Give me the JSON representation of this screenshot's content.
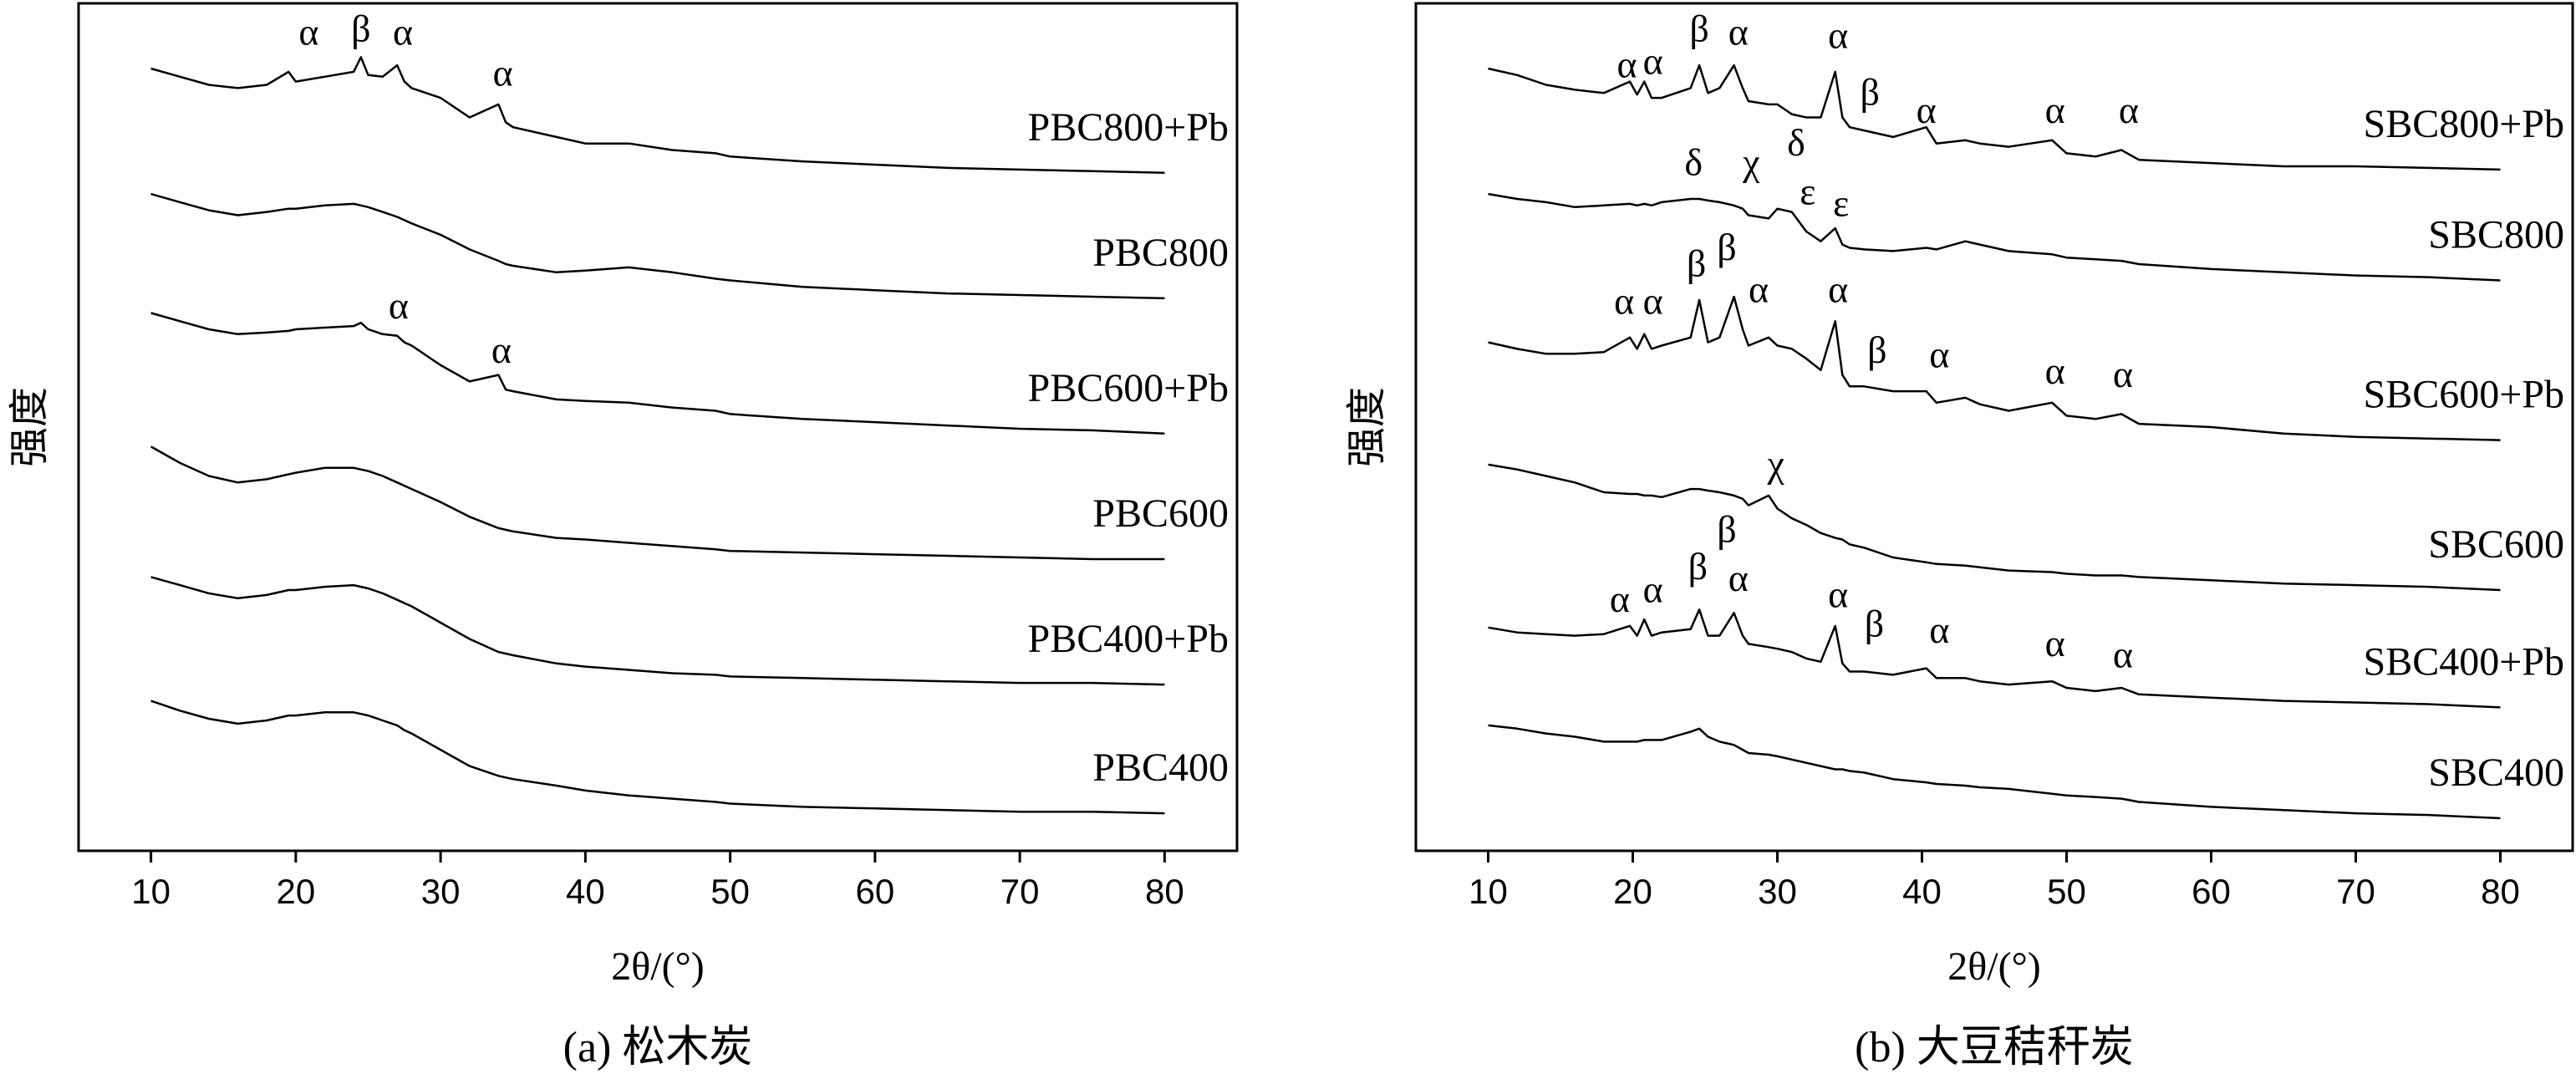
{
  "chart_data": [
    {
      "type": "line",
      "caption": "(a) 松木炭",
      "xlabel": "2θ/(°)",
      "ylabel": "强度",
      "xlim": [
        5,
        85
      ],
      "xticks": [
        10,
        20,
        30,
        40,
        50,
        60,
        70,
        80
      ],
      "ylim": [
        0,
        520
      ],
      "x": [
        10,
        12,
        14,
        16,
        18,
        19.5,
        20,
        22,
        24,
        24.5,
        25,
        26,
        27,
        27.5,
        28,
        30,
        32,
        34,
        34.5,
        35,
        38,
        40,
        43,
        46,
        49,
        50,
        55,
        60,
        65,
        70,
        75,
        80
      ],
      "series": [
        {
          "name": "PBC800+Pb",
          "color": "#000000",
          "values": [
            480,
            475,
            470,
            468,
            470,
            478,
            472,
            475,
            478,
            487,
            476,
            475,
            482,
            472,
            468,
            462,
            450,
            458,
            447,
            444,
            438,
            434,
            434,
            430,
            428,
            426,
            423,
            421,
            419,
            418,
            417,
            416
          ]
        },
        {
          "name": "PBC800",
          "color": "#000000",
          "values": [
            403,
            398,
            393,
            390,
            392,
            394,
            394,
            396,
            397,
            396,
            395,
            392,
            389,
            387,
            385,
            378,
            369,
            362,
            360,
            359,
            355,
            356,
            358,
            355,
            351,
            350,
            346,
            344,
            342,
            341,
            340,
            339
          ]
        },
        {
          "name": "PBC600+Pb",
          "color": "#000000",
          "values": [
            330,
            325,
            320,
            317,
            318,
            319,
            320,
            321,
            322,
            324,
            320,
            317,
            316,
            312,
            310,
            298,
            288,
            292,
            283,
            282,
            277,
            276,
            275,
            272,
            270,
            268,
            265,
            263,
            261,
            259,
            258,
            256
          ]
        },
        {
          "name": "PBC600",
          "color": "#000000",
          "values": [
            248,
            238,
            230,
            226,
            228,
            231,
            232,
            235,
            235,
            234,
            233,
            230,
            226,
            224,
            222,
            214,
            205,
            198,
            197,
            196,
            192,
            191,
            189,
            187,
            185,
            184,
            183,
            182,
            181,
            180,
            179,
            179
          ]
        },
        {
          "name": "PBC400+Pb",
          "color": "#000000",
          "values": [
            168,
            163,
            158,
            155,
            157,
            160,
            160,
            162,
            163,
            162,
            161,
            158,
            154,
            152,
            150,
            140,
            130,
            122,
            121,
            120,
            115,
            113,
            111,
            109,
            108,
            107,
            106,
            105,
            104,
            103,
            103,
            102
          ]
        },
        {
          "name": "PBC400",
          "color": "#000000",
          "values": [
            92,
            86,
            81,
            78,
            80,
            83,
            83,
            85,
            85,
            84,
            83,
            80,
            77,
            74,
            72,
            62,
            52,
            46,
            45,
            44,
            40,
            37,
            34,
            32,
            30,
            29,
            27,
            26,
            25,
            24,
            24,
            23
          ]
        }
      ],
      "annotations": [
        {
          "text": "α",
          "x": 20.9,
          "y": 500
        },
        {
          "text": "β",
          "x": 24.5,
          "y": 502
        },
        {
          "text": "α",
          "x": 27.4,
          "y": 500
        },
        {
          "text": "α",
          "x": 34.3,
          "y": 475
        },
        {
          "text": "α",
          "x": 27.1,
          "y": 332
        },
        {
          "text": "α",
          "x": 34.2,
          "y": 305
        }
      ]
    },
    {
      "type": "line",
      "caption": "(b) 大豆秸秆炭",
      "xlabel": "2θ/(°)",
      "ylabel": "强度",
      "xlim": [
        5,
        85
      ],
      "xticks": [
        10,
        20,
        30,
        40,
        50,
        60,
        70,
        80
      ],
      "ylim": [
        0,
        520
      ],
      "x": [
        10,
        12,
        14,
        16,
        18,
        19.8,
        20.3,
        20.8,
        21.3,
        22,
        24,
        24.6,
        25.2,
        26,
        27,
        27.6,
        28,
        29.4,
        30,
        31,
        32,
        33,
        34,
        34.5,
        35,
        36,
        38,
        40.3,
        41,
        43,
        44,
        46,
        49,
        50,
        52,
        53.8,
        55,
        60,
        65,
        70,
        75,
        80
      ],
      "series": [
        {
          "name": "SBC800+Pb",
          "color": "#000000",
          "values": [
            480,
            476,
            470,
            467,
            465,
            472,
            464,
            472,
            462,
            462,
            468,
            482,
            465,
            468,
            482,
            468,
            460,
            458,
            458,
            452,
            450,
            450,
            478,
            450,
            444,
            442,
            438,
            444,
            434,
            436,
            434,
            432,
            436,
            428,
            426,
            430,
            424,
            422,
            420,
            420,
            419,
            418
          ]
        },
        {
          "name": "SBC800",
          "color": "#000000",
          "values": [
            403,
            400,
            398,
            395,
            396,
            397,
            396,
            397,
            396,
            398,
            400,
            400,
            399,
            398,
            396,
            394,
            390,
            388,
            394,
            392,
            380,
            374,
            382,
            372,
            370,
            369,
            368,
            370,
            369,
            374,
            372,
            368,
            366,
            364,
            363,
            362,
            360,
            357,
            355,
            353,
            352,
            350
          ]
        },
        {
          "name": "SBC600+Pb",
          "color": "#000000",
          "values": [
            312,
            308,
            305,
            305,
            306,
            315,
            308,
            317,
            308,
            310,
            315,
            338,
            312,
            315,
            340,
            320,
            310,
            315,
            310,
            308,
            302,
            295,
            325,
            292,
            285,
            285,
            282,
            282,
            275,
            278,
            274,
            270,
            275,
            267,
            265,
            268,
            262,
            260,
            256,
            254,
            253,
            252
          ]
        },
        {
          "name": "SBC600",
          "color": "#000000",
          "values": [
            237,
            234,
            230,
            226,
            220,
            219,
            219,
            218,
            218,
            217,
            222,
            222,
            221,
            220,
            218,
            216,
            212,
            218,
            210,
            204,
            200,
            195,
            192,
            191,
            188,
            186,
            180,
            177,
            176,
            175,
            174,
            172,
            171,
            170,
            169,
            169,
            168,
            166,
            164,
            163,
            162,
            160
          ]
        },
        {
          "name": "SBC400+Pb",
          "color": "#000000",
          "values": [
            137,
            134,
            133,
            132,
            133,
            138,
            132,
            142,
            132,
            134,
            136,
            148,
            132,
            132,
            146,
            132,
            127,
            125,
            124,
            122,
            118,
            116,
            138,
            115,
            110,
            110,
            108,
            112,
            106,
            106,
            104,
            102,
            104,
            100,
            98,
            100,
            96,
            94,
            92,
            91,
            90,
            88
          ]
        },
        {
          "name": "SBC400",
          "color": "#000000",
          "values": [
            77,
            75,
            72,
            70,
            67,
            67,
            67,
            68,
            68,
            68,
            73,
            75,
            70,
            67,
            65,
            62,
            60,
            59,
            58,
            56,
            54,
            52,
            50,
            50,
            49,
            48,
            44,
            42,
            41,
            40,
            39,
            38,
            35,
            34,
            33,
            32,
            30,
            27,
            25,
            23,
            22,
            20
          ]
        }
      ],
      "annotations": [
        {
          "text": "α",
          "x": 19.6,
          "y": 480
        },
        {
          "text": "α",
          "x": 21.4,
          "y": 482
        },
        {
          "text": "β",
          "x": 24.6,
          "y": 502
        },
        {
          "text": "α",
          "x": 27.3,
          "y": 500
        },
        {
          "text": "α",
          "x": 34.2,
          "y": 498
        },
        {
          "text": "β",
          "x": 36.4,
          "y": 463
        },
        {
          "text": "α",
          "x": 40.3,
          "y": 452
        },
        {
          "text": "α",
          "x": 49.2,
          "y": 452
        },
        {
          "text": "α",
          "x": 54.3,
          "y": 452
        },
        {
          "text": "δ",
          "x": 24.2,
          "y": 420
        },
        {
          "text": "χ",
          "x": 28.2,
          "y": 420
        },
        {
          "text": "δ",
          "x": 31.3,
          "y": 432
        },
        {
          "text": "ε",
          "x": 32.1,
          "y": 402
        },
        {
          "text": "ε",
          "x": 34.4,
          "y": 395
        },
        {
          "text": "α",
          "x": 19.4,
          "y": 335
        },
        {
          "text": "α",
          "x": 21.4,
          "y": 335
        },
        {
          "text": "β",
          "x": 24.4,
          "y": 358
        },
        {
          "text": "β",
          "x": 26.5,
          "y": 368
        },
        {
          "text": "α",
          "x": 28.7,
          "y": 342
        },
        {
          "text": "α",
          "x": 34.2,
          "y": 342
        },
        {
          "text": "β",
          "x": 36.9,
          "y": 305
        },
        {
          "text": "α",
          "x": 41.2,
          "y": 302
        },
        {
          "text": "α",
          "x": 49.2,
          "y": 292
        },
        {
          "text": "α",
          "x": 53.9,
          "y": 290
        },
        {
          "text": "χ",
          "x": 29.9,
          "y": 235
        },
        {
          "text": "α",
          "x": 19.1,
          "y": 152
        },
        {
          "text": "α",
          "x": 21.4,
          "y": 158
        },
        {
          "text": "β",
          "x": 24.5,
          "y": 172
        },
        {
          "text": "β",
          "x": 26.5,
          "y": 195
        },
        {
          "text": "α",
          "x": 27.3,
          "y": 165
        },
        {
          "text": "α",
          "x": 34.2,
          "y": 155
        },
        {
          "text": "β",
          "x": 36.7,
          "y": 137
        },
        {
          "text": "α",
          "x": 41.2,
          "y": 133
        },
        {
          "text": "α",
          "x": 49.2,
          "y": 125
        },
        {
          "text": "α",
          "x": 53.9,
          "y": 118
        }
      ]
    }
  ]
}
